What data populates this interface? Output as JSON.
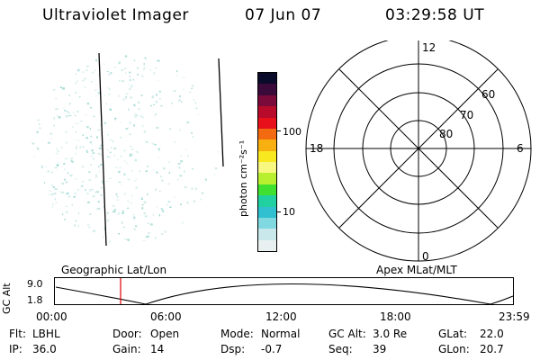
{
  "header": {
    "title": "Ultraviolet Imager",
    "date": "07 Jun 07",
    "time": "03:29:58 UT"
  },
  "colorbar": {
    "unit_label": "photon cm⁻²s⁻¹",
    "ticks": [
      "100",
      "10"
    ],
    "colors": [
      "#0a0a2a",
      "#3a0a3a",
      "#7a0a3a",
      "#b80a2a",
      "#e8101a",
      "#f46a10",
      "#f8b010",
      "#f8e820",
      "#f8f880",
      "#b8f030",
      "#40e030",
      "#20d0a0",
      "#30c0d0",
      "#80d8e0",
      "#c8e8ec",
      "#e8f0f0"
    ]
  },
  "polar": {
    "hour_labels": {
      "top": "12",
      "left": "18",
      "right": "6",
      "bottom": "0"
    },
    "lat_labels": [
      "60",
      "70",
      "80"
    ]
  },
  "timeline": {
    "left_title": "Geographic Lat/Lon",
    "right_title": "Apex MLat/MLT",
    "ylabel": "GC Alt",
    "yticks": [
      "9.0",
      "1.8"
    ],
    "xticks": [
      "00:00",
      "06:00",
      "12:00",
      "18:00",
      "23:59"
    ],
    "marker_color": "#e00000"
  },
  "status": {
    "row1": [
      {
        "label": "Flt:",
        "value": "LBHL"
      },
      {
        "label": "Door:",
        "value": "Open"
      },
      {
        "label": "Mode:",
        "value": "Normal"
      },
      {
        "label": "GC Alt:",
        "value": "3.0 Re"
      },
      {
        "label": "GLat:",
        "value": "22.0"
      }
    ],
    "row2": [
      {
        "label": "IP:",
        "value": "36.0"
      },
      {
        "label": "Gain:",
        "value": "14"
      },
      {
        "label": "Dsp:",
        "value": "-0.7"
      },
      {
        "label": "Seq:",
        "value": "39"
      },
      {
        "label": "GLon:",
        "value": "20.7"
      }
    ]
  }
}
